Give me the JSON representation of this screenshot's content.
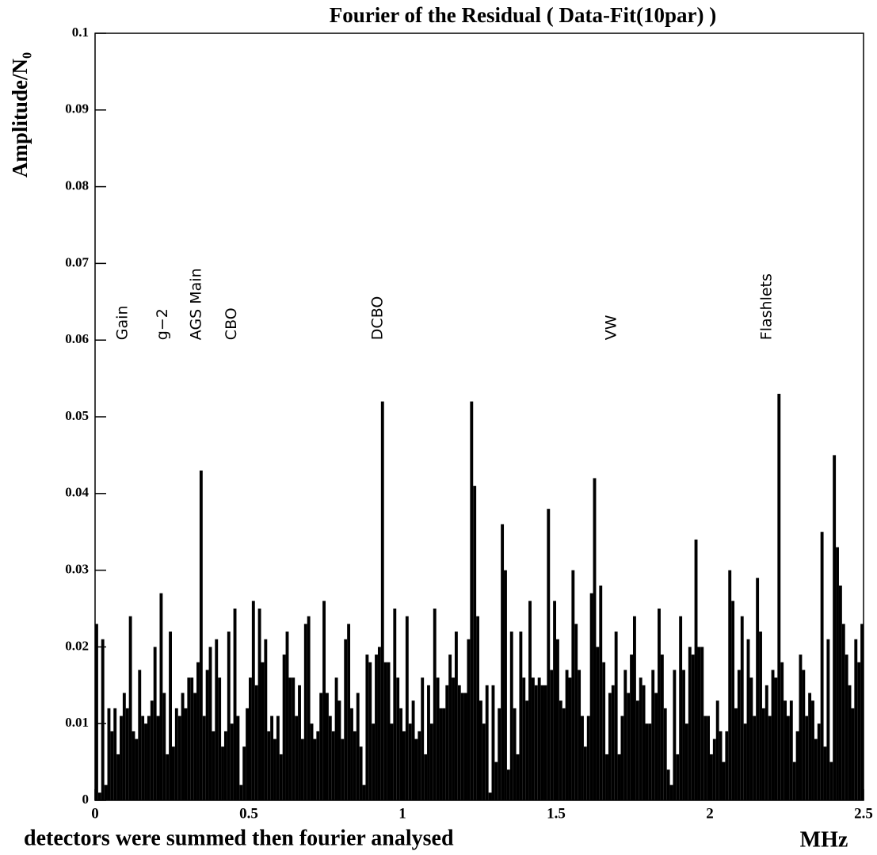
{
  "chart_data": {
    "type": "bar",
    "title": "Fourier of the Residual ( Data-Fit(10par) )",
    "y_label": "Amplitude/N₀",
    "x_label": "MHz",
    "footer": "detectors were summed then fourier analysed",
    "color": "#000000",
    "xlim": [
      0,
      2.5
    ],
    "xticks": [
      0,
      0.5,
      1,
      1.5,
      2,
      2.5
    ],
    "ylim": [
      0,
      0.1
    ],
    "yticks": [
      0,
      0.01,
      0.02,
      0.03,
      0.04,
      0.05,
      0.06,
      0.07,
      0.08,
      0.09,
      0.1
    ],
    "annotations": [
      {
        "text": "Gain",
        "x": 0.09,
        "y": 0.06
      },
      {
        "text": "g−2",
        "x": 0.22,
        "y": 0.06
      },
      {
        "text": "AGS Main",
        "x": 0.33,
        "y": 0.06
      },
      {
        "text": "CBO",
        "x": 0.445,
        "y": 0.06
      },
      {
        "text": "DCBO",
        "x": 0.92,
        "y": 0.06
      },
      {
        "text": "VW",
        "x": 1.68,
        "y": 0.06
      },
      {
        "text": "Flashlets",
        "x": 2.185,
        "y": 0.06
      }
    ],
    "x": [
      0,
      0.01,
      0.02,
      0.03,
      0.04,
      0.05,
      0.06,
      0.07,
      0.08,
      0.09,
      0.1,
      0.11,
      0.12,
      0.13,
      0.14,
      0.15,
      0.16,
      0.17,
      0.18,
      0.19,
      0.2,
      0.21,
      0.22,
      0.23,
      0.24,
      0.25,
      0.26,
      0.27,
      0.28,
      0.29,
      0.3,
      0.31,
      0.32,
      0.33,
      0.34,
      0.35,
      0.36,
      0.37,
      0.38,
      0.39,
      0.4,
      0.41,
      0.42,
      0.43,
      0.44,
      0.45,
      0.46,
      0.47,
      0.48,
      0.49,
      0.5,
      0.51,
      0.52,
      0.53,
      0.54,
      0.55,
      0.56,
      0.57,
      0.58,
      0.59,
      0.6,
      0.61,
      0.62,
      0.63,
      0.64,
      0.65,
      0.66,
      0.67,
      0.68,
      0.69,
      0.7,
      0.71,
      0.72,
      0.73,
      0.74,
      0.75,
      0.76,
      0.77,
      0.78,
      0.79,
      0.8,
      0.81,
      0.82,
      0.83,
      0.84,
      0.85,
      0.86,
      0.87,
      0.88,
      0.89,
      0.9,
      0.91,
      0.92,
      0.93,
      0.94,
      0.95,
      0.96,
      0.97,
      0.98,
      0.99,
      1,
      1.01,
      1.02,
      1.03,
      1.04,
      1.05,
      1.06,
      1.07,
      1.08,
      1.09,
      1.1,
      1.11,
      1.12,
      1.13,
      1.14,
      1.15,
      1.16,
      1.17,
      1.18,
      1.19,
      1.2,
      1.21,
      1.22,
      1.23,
      1.24,
      1.25,
      1.26,
      1.27,
      1.28,
      1.29,
      1.3,
      1.31,
      1.32,
      1.33,
      1.34,
      1.35,
      1.36,
      1.37,
      1.38,
      1.39,
      1.4,
      1.41,
      1.42,
      1.43,
      1.44,
      1.45,
      1.46,
      1.47,
      1.48,
      1.49,
      1.5,
      1.51,
      1.52,
      1.53,
      1.54,
      1.55,
      1.56,
      1.57,
      1.58,
      1.59,
      1.6,
      1.61,
      1.62,
      1.63,
      1.64,
      1.65,
      1.66,
      1.67,
      1.68,
      1.69,
      1.7,
      1.71,
      1.72,
      1.73,
      1.74,
      1.75,
      1.76,
      1.77,
      1.78,
      1.79,
      1.8,
      1.81,
      1.82,
      1.83,
      1.84,
      1.85,
      1.86,
      1.87,
      1.88,
      1.89,
      1.9,
      1.91,
      1.92,
      1.93,
      1.94,
      1.95,
      1.96,
      1.97,
      1.98,
      1.99,
      2,
      2.01,
      2.02,
      2.03,
      2.04,
      2.05,
      2.06,
      2.07,
      2.08,
      2.09,
      2.1,
      2.11,
      2.12,
      2.13,
      2.14,
      2.15,
      2.16,
      2.17,
      2.18,
      2.19,
      2.2,
      2.21,
      2.22,
      2.23,
      2.24,
      2.25,
      2.26,
      2.27,
      2.28,
      2.29,
      2.3,
      2.31,
      2.32,
      2.33,
      2.34,
      2.35,
      2.36,
      2.37,
      2.38,
      2.39,
      2.4,
      2.41,
      2.42,
      2.43,
      2.44,
      2.45,
      2.46,
      2.47,
      2.48,
      2.49
    ],
    "values": [
      0.023,
      0.001,
      0.021,
      0.002,
      0.012,
      0.009,
      0.012,
      0.006,
      0.011,
      0.014,
      0.012,
      0.024,
      0.009,
      0.008,
      0.017,
      0.011,
      0.01,
      0.011,
      0.013,
      0.02,
      0.011,
      0.027,
      0.014,
      0.006,
      0.022,
      0.007,
      0.012,
      0.011,
      0.014,
      0.012,
      0.016,
      0.016,
      0.014,
      0.018,
      0.043,
      0.011,
      0.017,
      0.02,
      0.009,
      0.021,
      0.016,
      0.007,
      0.009,
      0.022,
      0.01,
      0.025,
      0.011,
      0.002,
      0.007,
      0.012,
      0.016,
      0.026,
      0.015,
      0.025,
      0.018,
      0.021,
      0.009,
      0.011,
      0.008,
      0.011,
      0.006,
      0.019,
      0.022,
      0.016,
      0.016,
      0.011,
      0.015,
      0.008,
      0.023,
      0.024,
      0.01,
      0.008,
      0.009,
      0.014,
      0.026,
      0.014,
      0.011,
      0.009,
      0.016,
      0.013,
      0.008,
      0.021,
      0.023,
      0.012,
      0.009,
      0.014,
      0.007,
      0.002,
      0.019,
      0.018,
      0.01,
      0.019,
      0.02,
      0.052,
      0.018,
      0.018,
      0.01,
      0.025,
      0.016,
      0.012,
      0.009,
      0.024,
      0.01,
      0.013,
      0.008,
      0.009,
      0.016,
      0.006,
      0.015,
      0.01,
      0.025,
      0.016,
      0.012,
      0.012,
      0.015,
      0.019,
      0.016,
      0.022,
      0.015,
      0.014,
      0.014,
      0.021,
      0.052,
      0.041,
      0.024,
      0.013,
      0.01,
      0.015,
      0.001,
      0.015,
      0.005,
      0.012,
      0.036,
      0.03,
      0.004,
      0.022,
      0.012,
      0.006,
      0.022,
      0.016,
      0.013,
      0.026,
      0.016,
      0.015,
      0.016,
      0.015,
      0.015,
      0.038,
      0.017,
      0.026,
      0.021,
      0.013,
      0.012,
      0.017,
      0.016,
      0.03,
      0.023,
      0.017,
      0.011,
      0.007,
      0.011,
      0.027,
      0.042,
      0.02,
      0.028,
      0.018,
      0.006,
      0.014,
      0.015,
      0.022,
      0.006,
      0.011,
      0.017,
      0.014,
      0.019,
      0.024,
      0.013,
      0.016,
      0.015,
      0.01,
      0.01,
      0.017,
      0.014,
      0.025,
      0.019,
      0.012,
      0.004,
      0.002,
      0.017,
      0.006,
      0.024,
      0.017,
      0.01,
      0.02,
      0.019,
      0.034,
      0.02,
      0.02,
      0.011,
      0.011,
      0.006,
      0.008,
      0.013,
      0.009,
      0.005,
      0.009,
      0.03,
      0.026,
      0.012,
      0.017,
      0.024,
      0.01,
      0.021,
      0.016,
      0.011,
      0.029,
      0.022,
      0.012,
      0.015,
      0.011,
      0.017,
      0.016,
      0.053,
      0.018,
      0.013,
      0.011,
      0.013,
      0.005,
      0.009,
      0.019,
      0.017,
      0.011,
      0.014,
      0.013,
      0.008,
      0.01,
      0.035,
      0.007,
      0.021,
      0.005,
      0.045,
      0.033,
      0.028,
      0.023,
      0.019,
      0.015,
      0.012,
      0.021,
      0.018,
      0.023
    ]
  }
}
